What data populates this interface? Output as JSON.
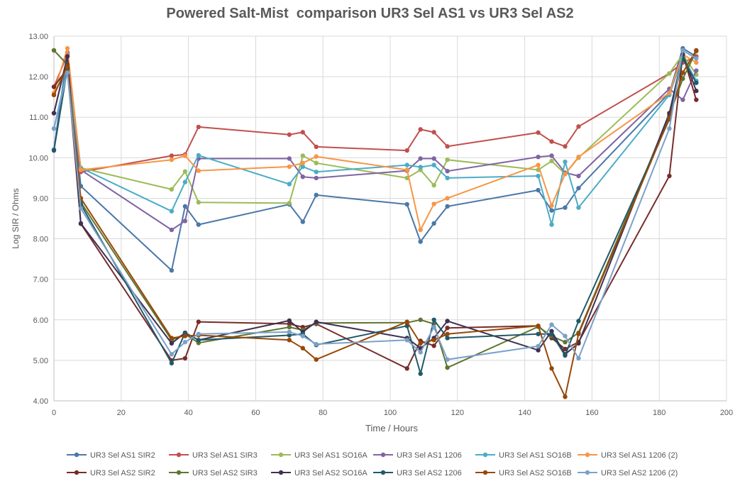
{
  "chart_data": {
    "type": "line",
    "title": "Powered Salt-Mist  comparison UR3 Sel AS1 vs UR3 Sel AS2",
    "xlabel": "Time / Hours",
    "ylabel": "Log SIR / Ohms",
    "xlim": [
      0,
      200
    ],
    "ylim": [
      4,
      13
    ],
    "xticks": [
      "0",
      "20",
      "40",
      "60",
      "80",
      "100",
      "120",
      "140",
      "160",
      "180",
      "200"
    ],
    "yticks": [
      "4.00",
      "5.00",
      "6.00",
      "7.00",
      "8.00",
      "9.00",
      "10.00",
      "11.00",
      "12.00",
      "13.00"
    ],
    "grid": true,
    "legend_position": "bottom",
    "series": [
      {
        "name": "UR3 Sel AS1 SIR2",
        "color": "#4a78a8",
        "x": [
          0,
          4,
          8,
          35,
          39,
          43,
          70,
          74,
          78,
          105,
          109,
          113,
          117,
          144,
          148,
          152,
          156,
          183,
          187,
          191
        ],
        "y": [
          10.2,
          12.6,
          9.3,
          7.22,
          8.8,
          8.35,
          8.85,
          8.42,
          9.08,
          8.85,
          7.93,
          8.38,
          8.8,
          9.2,
          8.7,
          8.77,
          9.25,
          11.6,
          12.7,
          12.5
        ]
      },
      {
        "name": "UR3 Sel AS1 SIR3",
        "color": "#c0504d",
        "x": [
          0,
          4,
          8,
          35,
          39,
          43,
          70,
          74,
          78,
          105,
          109,
          113,
          117,
          144,
          148,
          152,
          156,
          183,
          187,
          191
        ],
        "y": [
          11.75,
          12.55,
          9.65,
          10.05,
          10.08,
          10.76,
          10.57,
          10.63,
          10.27,
          10.18,
          10.7,
          10.63,
          10.28,
          10.62,
          10.4,
          10.28,
          10.77,
          12.08,
          12.35,
          12.5
        ]
      },
      {
        "name": "UR3 Sel AS1 SO16A",
        "color": "#9bbb59",
        "x": [
          0,
          4,
          8,
          35,
          39,
          43,
          70,
          74,
          78,
          105,
          109,
          113,
          117,
          144,
          148,
          152,
          156,
          183,
          187,
          191
        ],
        "y": [
          11.55,
          12.3,
          9.75,
          9.22,
          9.66,
          8.9,
          8.88,
          10.05,
          9.87,
          9.5,
          9.7,
          9.32,
          9.95,
          9.7,
          9.92,
          9.6,
          10.0,
          12.08,
          12.55,
          12.05
        ]
      },
      {
        "name": "UR3 Sel AS1 1206",
        "color": "#8064a2",
        "x": [
          0,
          4,
          8,
          35,
          39,
          43,
          70,
          74,
          78,
          105,
          109,
          113,
          117,
          144,
          148,
          152,
          156,
          183,
          187,
          191
        ],
        "y": [
          11.1,
          12.5,
          9.7,
          8.22,
          8.44,
          9.98,
          9.98,
          9.53,
          9.5,
          9.68,
          9.98,
          9.98,
          9.67,
          10.02,
          10.05,
          9.63,
          9.55,
          11.7,
          11.43,
          12.15
        ]
      },
      {
        "name": "UR3 Sel AS1 SO16B",
        "color": "#4bacc6",
        "x": [
          0,
          4,
          8,
          35,
          39,
          43,
          70,
          74,
          78,
          105,
          109,
          113,
          117,
          144,
          148,
          152,
          156,
          183,
          187,
          191
        ],
        "y": [
          10.72,
          12.2,
          9.75,
          8.68,
          9.4,
          10.06,
          9.35,
          9.78,
          9.65,
          9.82,
          9.77,
          9.82,
          9.5,
          9.55,
          8.35,
          9.9,
          8.77,
          11.55,
          12.5,
          11.9
        ]
      },
      {
        "name": "UR3 Sel AS1 1206 (2)",
        "color": "#f79646",
        "x": [
          0,
          4,
          8,
          35,
          39,
          43,
          70,
          74,
          78,
          105,
          109,
          113,
          117,
          144,
          148,
          152,
          156,
          183,
          187,
          191
        ],
        "y": [
          11.6,
          12.7,
          9.7,
          9.95,
          10.05,
          9.68,
          9.78,
          9.87,
          10.03,
          9.7,
          8.22,
          8.86,
          9.0,
          9.82,
          8.82,
          9.6,
          10.02,
          11.6,
          12.55,
          12.35
        ]
      },
      {
        "name": "UR3 Sel AS2 SIR2",
        "color": "#772c2a",
        "x": [
          0,
          4,
          8,
          35,
          39,
          43,
          70,
          74,
          78,
          105,
          109,
          113,
          117,
          144,
          148,
          152,
          156,
          183,
          187,
          191
        ],
        "y": [
          11.75,
          12.2,
          8.37,
          5.0,
          5.05,
          5.95,
          5.9,
          5.82,
          5.9,
          4.8,
          5.48,
          5.36,
          5.8,
          5.85,
          5.55,
          5.28,
          5.45,
          9.55,
          12.55,
          11.43
        ]
      },
      {
        "name": "UR3 Sel AS2 SIR3",
        "color": "#5f7530",
        "x": [
          0,
          4,
          8,
          35,
          39,
          43,
          70,
          74,
          78,
          105,
          109,
          113,
          117,
          144,
          148,
          152,
          156,
          183,
          187,
          191
        ],
        "y": [
          12.65,
          12.3,
          8.9,
          5.5,
          5.65,
          5.43,
          5.82,
          5.75,
          5.92,
          5.93,
          6.0,
          5.9,
          4.82,
          5.83,
          5.6,
          5.45,
          5.68,
          11.05,
          11.95,
          12.63
        ]
      },
      {
        "name": "UR3 Sel AS2 SO16A",
        "color": "#3f3151",
        "x": [
          0,
          4,
          8,
          35,
          39,
          43,
          70,
          74,
          78,
          105,
          109,
          113,
          117,
          144,
          148,
          152,
          156,
          183,
          187,
          191
        ],
        "y": [
          11.1,
          12.5,
          8.38,
          5.42,
          5.68,
          5.5,
          5.98,
          5.7,
          5.95,
          5.55,
          5.3,
          5.55,
          5.97,
          5.25,
          5.72,
          5.15,
          5.42,
          11.1,
          12.55,
          11.65
        ]
      },
      {
        "name": "UR3 Sel AS2 1206",
        "color": "#215968",
        "x": [
          0,
          4,
          8,
          35,
          39,
          43,
          70,
          74,
          78,
          105,
          109,
          113,
          117,
          144,
          148,
          152,
          156,
          183,
          187,
          191
        ],
        "y": [
          10.18,
          12.2,
          8.85,
          4.93,
          5.68,
          5.5,
          5.62,
          5.65,
          5.38,
          5.85,
          4.67,
          6.0,
          5.55,
          5.65,
          5.65,
          5.12,
          5.97,
          10.95,
          12.45,
          11.85
        ]
      },
      {
        "name": "UR3 Sel AS2 SO16B",
        "color": "#984807",
        "x": [
          0,
          4,
          8,
          35,
          39,
          43,
          70,
          74,
          78,
          105,
          109,
          113,
          117,
          144,
          148,
          152,
          156,
          183,
          187,
          191
        ],
        "y": [
          11.55,
          12.25,
          9.0,
          5.55,
          5.6,
          5.62,
          5.5,
          5.3,
          5.02,
          5.95,
          5.42,
          5.5,
          5.65,
          5.85,
          4.8,
          4.1,
          5.65,
          10.98,
          12.1,
          12.65
        ]
      },
      {
        "name": "UR3 Sel AS2 1206 (2)",
        "color": "#7ba1c9",
        "x": [
          0,
          4,
          8,
          35,
          39,
          43,
          70,
          74,
          78,
          105,
          109,
          113,
          117,
          144,
          148,
          152,
          156,
          183,
          187,
          191
        ],
        "y": [
          10.72,
          12.1,
          8.75,
          5.15,
          5.45,
          5.65,
          5.7,
          5.6,
          5.4,
          5.5,
          5.2,
          5.82,
          5.02,
          5.35,
          5.88,
          5.6,
          5.05,
          10.72,
          12.65,
          12.45
        ]
      }
    ]
  }
}
